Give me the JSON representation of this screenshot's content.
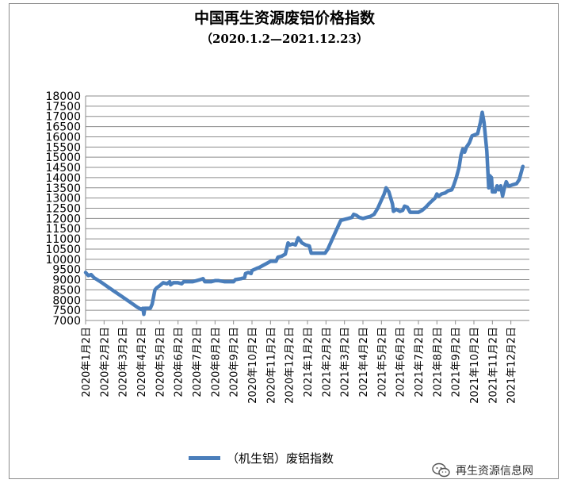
{
  "chart_data": {
    "type": "line",
    "title": "中国再生资源废铝价格指数",
    "subtitle": "（2020.1.2—2021.12.23）",
    "xlabel": "",
    "ylabel": "",
    "ylim": [
      7000,
      18000
    ],
    "yticks": [
      7000,
      7500,
      8000,
      8500,
      9000,
      9500,
      10000,
      10500,
      11000,
      11500,
      12000,
      12500,
      13000,
      13500,
      14000,
      14500,
      15000,
      15500,
      16000,
      16500,
      17000,
      17500,
      18000
    ],
    "ytick_labels": [
      "7000",
      "7500",
      "8000",
      "8500",
      "9000",
      "9500",
      "10000",
      "10500",
      "11000",
      "11500",
      "12000",
      "12500",
      "13000",
      "13500",
      "14000",
      "14500",
      "15000",
      "15500",
      "16000",
      "16500",
      "17000",
      "17500",
      "18000"
    ],
    "xticks": [
      {
        "label": "2020年1月2日",
        "x": 0
      },
      {
        "label": "2020年2月2日",
        "x": 1
      },
      {
        "label": "2020年3月2日",
        "x": 2
      },
      {
        "label": "2020年4月2日",
        "x": 3
      },
      {
        "label": "2020年5月2日",
        "x": 4
      },
      {
        "label": "2020年6月2日",
        "x": 5
      },
      {
        "label": "2020年7月2日",
        "x": 6
      },
      {
        "label": "2020年8月2日",
        "x": 7
      },
      {
        "label": "2020年9月2日",
        "x": 8
      },
      {
        "label": "2020年10月2日",
        "x": 9
      },
      {
        "label": "2020年11月2日",
        "x": 10
      },
      {
        "label": "2020年12月2日",
        "x": 11
      },
      {
        "label": "2021年1月2日",
        "x": 12
      },
      {
        "label": "2021年2月2日",
        "x": 13
      },
      {
        "label": "2021年3月2日",
        "x": 14
      },
      {
        "label": "2021年4月2日",
        "x": 15
      },
      {
        "label": "2021年5月2日",
        "x": 16
      },
      {
        "label": "2021年6月2日",
        "x": 17
      },
      {
        "label": "2021年7月2日",
        "x": 18
      },
      {
        "label": "2021年8月2日",
        "x": 19
      },
      {
        "label": "2021年9月2日",
        "x": 20
      },
      {
        "label": "2021年10月2日",
        "x": 21
      },
      {
        "label": "2021年11月2日",
        "x": 22
      },
      {
        "label": "2021年12月2日",
        "x": 23
      }
    ],
    "xlim": [
      0,
      24
    ],
    "grid": true,
    "legend": "bottom",
    "series": [
      {
        "name": "（机生铝）废铝指数",
        "color": "#4a7ebb",
        "points": [
          [
            0.0,
            9350
          ],
          [
            0.15,
            9200
          ],
          [
            0.3,
            9250
          ],
          [
            0.45,
            9100
          ],
          [
            0.8,
            8900
          ],
          [
            1.2,
            8650
          ],
          [
            1.6,
            8400
          ],
          [
            2.0,
            8150
          ],
          [
            2.4,
            7900
          ],
          [
            2.8,
            7650
          ],
          [
            3.0,
            7550
          ],
          [
            3.1,
            7600
          ],
          [
            3.15,
            7300
          ],
          [
            3.2,
            7600
          ],
          [
            3.5,
            7600
          ],
          [
            3.6,
            7800
          ],
          [
            3.75,
            8500
          ],
          [
            3.85,
            8600
          ],
          [
            4.0,
            8700
          ],
          [
            4.2,
            8850
          ],
          [
            4.4,
            8800
          ],
          [
            4.55,
            8900
          ],
          [
            4.6,
            8750
          ],
          [
            4.75,
            8850
          ],
          [
            5.0,
            8850
          ],
          [
            5.2,
            8800
          ],
          [
            5.3,
            8900
          ],
          [
            5.6,
            8900
          ],
          [
            5.8,
            8900
          ],
          [
            6.0,
            8950
          ],
          [
            6.2,
            9000
          ],
          [
            6.35,
            9050
          ],
          [
            6.45,
            8900
          ],
          [
            6.8,
            8900
          ],
          [
            7.0,
            8950
          ],
          [
            7.2,
            8950
          ],
          [
            7.5,
            8900
          ],
          [
            7.8,
            8900
          ],
          [
            8.0,
            8900
          ],
          [
            8.1,
            9000
          ],
          [
            8.4,
            9050
          ],
          [
            8.6,
            9100
          ],
          [
            8.65,
            9300
          ],
          [
            8.8,
            9350
          ],
          [
            8.95,
            9300
          ],
          [
            9.0,
            9450
          ],
          [
            9.25,
            9550
          ],
          [
            9.4,
            9600
          ],
          [
            9.6,
            9700
          ],
          [
            9.8,
            9800
          ],
          [
            10.0,
            9900
          ],
          [
            10.3,
            9900
          ],
          [
            10.4,
            10100
          ],
          [
            10.6,
            10150
          ],
          [
            10.8,
            10250
          ],
          [
            10.95,
            10800
          ],
          [
            11.05,
            10700
          ],
          [
            11.2,
            10750
          ],
          [
            11.35,
            10700
          ],
          [
            11.5,
            11050
          ],
          [
            11.7,
            10800
          ],
          [
            11.9,
            10700
          ],
          [
            12.1,
            10650
          ],
          [
            12.2,
            10300
          ],
          [
            12.4,
            10300
          ],
          [
            12.6,
            10300
          ],
          [
            12.8,
            10300
          ],
          [
            12.95,
            10300
          ],
          [
            13.1,
            10500
          ],
          [
            13.35,
            11000
          ],
          [
            13.6,
            11500
          ],
          [
            13.8,
            11900
          ],
          [
            14.0,
            11950
          ],
          [
            14.2,
            12000
          ],
          [
            14.4,
            12050
          ],
          [
            14.5,
            12200
          ],
          [
            14.65,
            12150
          ],
          [
            14.8,
            12050
          ],
          [
            15.0,
            12000
          ],
          [
            15.2,
            12050
          ],
          [
            15.4,
            12100
          ],
          [
            15.6,
            12200
          ],
          [
            15.8,
            12500
          ],
          [
            16.0,
            12900
          ],
          [
            16.15,
            13200
          ],
          [
            16.25,
            13500
          ],
          [
            16.4,
            13300
          ],
          [
            16.5,
            13000
          ],
          [
            16.6,
            12700
          ],
          [
            16.65,
            12350
          ],
          [
            16.8,
            12450
          ],
          [
            17.0,
            12350
          ],
          [
            17.15,
            12400
          ],
          [
            17.25,
            12600
          ],
          [
            17.4,
            12550
          ],
          [
            17.55,
            12300
          ],
          [
            17.8,
            12300
          ],
          [
            18.0,
            12300
          ],
          [
            18.2,
            12400
          ],
          [
            18.4,
            12550
          ],
          [
            18.6,
            12750
          ],
          [
            18.9,
            13000
          ],
          [
            19.0,
            13200
          ],
          [
            19.1,
            13100
          ],
          [
            19.25,
            13200
          ],
          [
            19.45,
            13250
          ],
          [
            19.6,
            13350
          ],
          [
            19.8,
            13400
          ],
          [
            19.9,
            13600
          ],
          [
            20.05,
            14000
          ],
          [
            20.2,
            14500
          ],
          [
            20.3,
            15100
          ],
          [
            20.4,
            15400
          ],
          [
            20.5,
            15250
          ],
          [
            20.6,
            15500
          ],
          [
            20.75,
            15700
          ],
          [
            20.9,
            16050
          ],
          [
            21.05,
            16100
          ],
          [
            21.2,
            16150
          ],
          [
            21.35,
            16700
          ],
          [
            21.45,
            17200
          ],
          [
            21.55,
            16700
          ],
          [
            21.7,
            15300
          ],
          [
            21.8,
            13500
          ],
          [
            21.85,
            14100
          ],
          [
            21.95,
            14000
          ],
          [
            22.0,
            13300
          ],
          [
            22.15,
            13300
          ],
          [
            22.25,
            13600
          ],
          [
            22.35,
            13400
          ],
          [
            22.45,
            13600
          ],
          [
            22.55,
            13100
          ],
          [
            22.65,
            13500
          ],
          [
            22.75,
            13800
          ],
          [
            22.85,
            13600
          ],
          [
            22.95,
            13600
          ],
          [
            23.1,
            13650
          ],
          [
            23.3,
            13700
          ],
          [
            23.45,
            13900
          ],
          [
            23.6,
            14400
          ],
          [
            23.65,
            14550
          ]
        ]
      }
    ]
  },
  "watermark": {
    "text": "再生资源信息网",
    "icon": "wechat-icon"
  }
}
